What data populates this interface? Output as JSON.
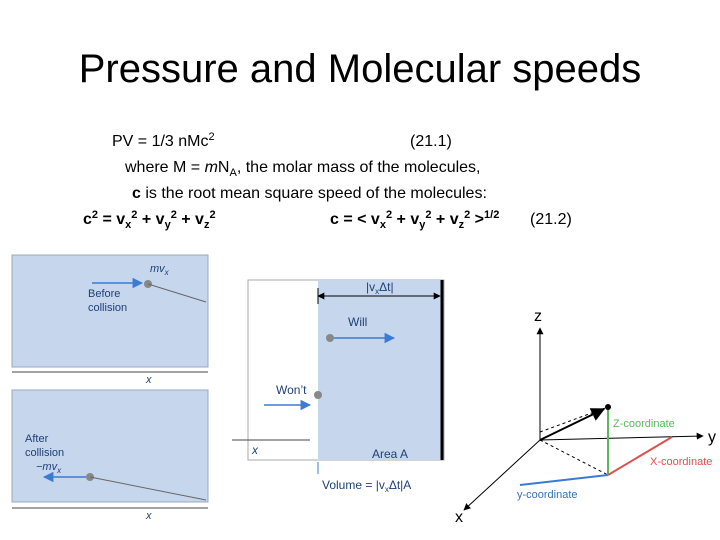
{
  "title": "Pressure and Molecular speeds",
  "equations": [
    [
      "PV =  1/3 nMc",
      "2",
      "(21.1)"
    ],
    [
      "where M = ",
      "m",
      "N",
      "A",
      ", the molar mass of the molecules,"
    ],
    [
      "c",
      " is the root mean square speed of the molecules:"
    ],
    [
      "c",
      "2",
      " =  v",
      "x",
      "2",
      " + v",
      "y",
      "2",
      " + v",
      "z",
      "2",
      "c = < v",
      "x",
      "2",
      " + v",
      "y",
      "2",
      " + v",
      "z",
      "2",
      " >",
      "1/2",
      "(21.2)"
    ]
  ],
  "collision_figure": {
    "before": {
      "momentum": [
        "mv",
        "x"
      ],
      "caption": [
        "Before",
        "collision"
      ],
      "axis": "x"
    },
    "after": {
      "caption": [
        "After",
        "collision"
      ],
      "momentum": [
        "−mv",
        "x"
      ],
      "axis": "x"
    }
  },
  "volume_figure": {
    "width": [
      "|v",
      "x",
      "Δt|"
    ],
    "will": "Will",
    "wont": "Won’t",
    "axis": "x",
    "area": "Area A",
    "volume": [
      "Volume = |v",
      "x",
      "Δt|A"
    ]
  },
  "axes_figure": {
    "z": "z",
    "y": "y",
    "x": "x",
    "z_coordinate": "Z-coordinate",
    "x_coordinate": "X-coordinate",
    "y_coordinate": "y-coordinate"
  }
}
